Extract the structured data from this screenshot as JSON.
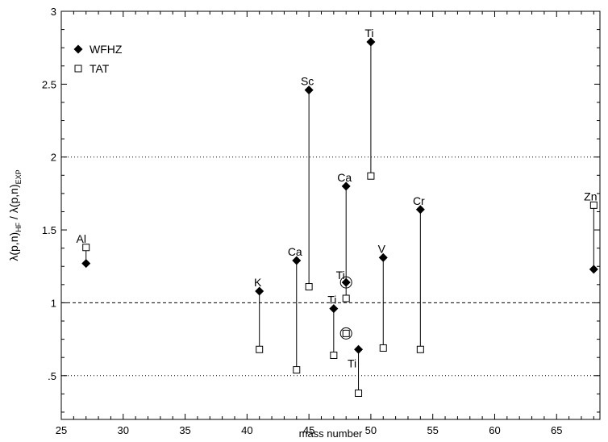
{
  "chart_data": {
    "type": "scatter",
    "xlabel": "mass number",
    "ylabel": {
      "base": "λ(p,n)",
      "sub1": "HF",
      "mid": " / λ(p,n)",
      "sub2": "EXP"
    },
    "xlim": [
      25,
      68.5
    ],
    "ylim": [
      0.2,
      3
    ],
    "x_ticks": [
      25,
      30,
      35,
      40,
      45,
      50,
      55,
      60,
      65
    ],
    "y_ticks": [
      {
        "value": 0.5,
        "label": ".5"
      },
      {
        "value": 1,
        "label": "1"
      },
      {
        "value": 1.5,
        "label": "1.5"
      },
      {
        "value": 2,
        "label": "2"
      },
      {
        "value": 2.5,
        "label": "2.5"
      },
      {
        "value": 3,
        "label": "3"
      }
    ],
    "reference_lines": [
      {
        "y": 0.5,
        "style": "dotted"
      },
      {
        "y": 1,
        "style": "dashed"
      },
      {
        "y": 2,
        "style": "dotted"
      }
    ],
    "legend": {
      "placement": "top-left",
      "entries": [
        {
          "label": "WFHZ",
          "marker": "filled-diamond"
        },
        {
          "label": "TAT",
          "marker": "open-square"
        }
      ]
    },
    "series": [
      {
        "name": "WFHZ",
        "marker": "filled-diamond"
      },
      {
        "name": "TAT",
        "marker": "open-square"
      }
    ],
    "points": [
      {
        "element": "Al",
        "x": 27,
        "wfhz": 1.27,
        "tat": 1.38
      },
      {
        "element": "K",
        "x": 41,
        "wfhz": 1.08,
        "tat": 0.68
      },
      {
        "element": "Ca",
        "x": 44,
        "wfhz": 1.29,
        "tat": 0.54
      },
      {
        "element": "Sc",
        "x": 45,
        "wfhz": 2.46,
        "tat": 1.11
      },
      {
        "element": "Ti",
        "x": 47,
        "wfhz": 0.96,
        "tat": 0.64
      },
      {
        "element": "Ca",
        "x": 48,
        "wfhz": 1.8,
        "tat": 1.03
      },
      {
        "element": "Ti",
        "x": 48,
        "wfhz": 1.14,
        "tat": 0.79,
        "circled": true
      },
      {
        "element": "Ti",
        "x": 49,
        "wfhz": 0.68,
        "tat": 0.38
      },
      {
        "element": "Ti",
        "x": 50,
        "wfhz": 2.79,
        "tat": 1.87
      },
      {
        "element": "V",
        "x": 51,
        "wfhz": 1.31,
        "tat": 0.69
      },
      {
        "element": "Cr",
        "x": 54,
        "wfhz": 1.64,
        "tat": 0.68
      },
      {
        "element": "Zn",
        "x": 68,
        "wfhz": 1.23,
        "tat": 1.67
      }
    ]
  }
}
